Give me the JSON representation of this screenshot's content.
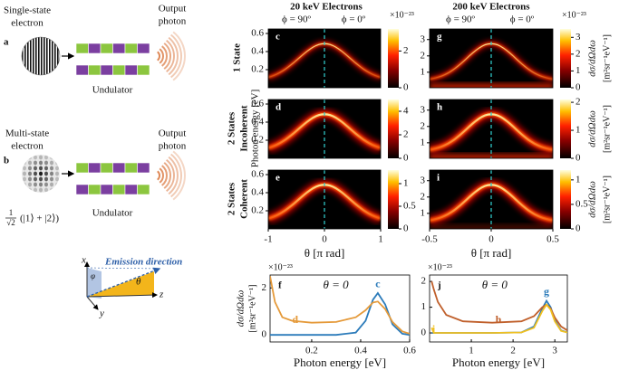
{
  "figure": {
    "panel_a": "a",
    "panel_b": "b",
    "single_electron": [
      "Single-state",
      "electron"
    ],
    "multi_electron": [
      "Multi-state",
      "electron"
    ],
    "output_photon_a": [
      "Output",
      "photon"
    ],
    "output_photon_b": [
      "Output",
      "photon"
    ],
    "undulator_a": "Undulator",
    "undulator_b": "Undulator",
    "superposition": {
      "num": "1",
      "den": "√2",
      "state": "(|1⟩ + |2⟩)"
    },
    "coordinates": {
      "x": "x",
      "y": "y",
      "z": "z",
      "phi": "φ",
      "theta": "θ",
      "emission": "Emission direction"
    },
    "columns": [
      {
        "title": "20 keV Electrons",
        "phi_left": "ϕ = 90º",
        "phi_right": "ϕ = 0º"
      },
      {
        "title": "200 keV Electrons",
        "phi_left": "ϕ = 90º",
        "phi_right": "ϕ = 0º"
      }
    ],
    "rows": [
      [
        "1 State"
      ],
      [
        "2 States",
        "Incoherent"
      ],
      [
        "2 States",
        "Coherent"
      ]
    ],
    "photon_energy_label": "Photon energy [eV]"
  },
  "chart_data": [
    {
      "type": "heatmap",
      "panel": "c",
      "ylim": [
        0,
        0.65
      ],
      "yticks": [
        0.2,
        0.4,
        0.6
      ],
      "zlim": [
        0,
        3.2
      ],
      "zticks": [
        0,
        2
      ],
      "zexponent": "×10⁻²³",
      "xlim": [
        -1,
        1
      ]
    },
    {
      "type": "heatmap",
      "panel": "d",
      "ylim": [
        0,
        0.65
      ],
      "yticks": [
        0.2,
        0.4,
        0.6
      ],
      "zlim": [
        0,
        5
      ],
      "zticks": [
        0,
        2,
        4
      ],
      "xlim": [
        -1,
        1
      ]
    },
    {
      "type": "heatmap",
      "panel": "e",
      "ylim": [
        0,
        0.65
      ],
      "yticks": [
        0.2,
        0.4,
        0.6
      ],
      "zlim": [
        0,
        1.3
      ],
      "zticks": [
        0,
        0.5,
        1
      ],
      "xlim": [
        -1,
        1
      ],
      "xticks": [
        -1,
        0,
        1
      ],
      "xlabel": "θ [π rad]"
    },
    {
      "type": "heatmap",
      "panel": "g",
      "ylim": [
        0.05,
        3.65
      ],
      "yticks": [
        1,
        2,
        3
      ],
      "zlim": [
        0,
        3.5
      ],
      "zticks": [
        0,
        1,
        2,
        3
      ],
      "zexponent": "×10⁻²³",
      "zlabel": "dσ/dΩdω",
      "zunit": "[m²sr⁻¹eV⁻¹]",
      "xlim": [
        -0.5,
        0.5
      ]
    },
    {
      "type": "heatmap",
      "panel": "h",
      "ylim": [
        0.05,
        3.65
      ],
      "yticks": [
        1,
        2,
        3
      ],
      "zlim": [
        0,
        2.1
      ],
      "zticks": [
        0,
        1,
        2
      ],
      "zlabel": "dσ/dΩdω",
      "zunit": "[m²sr⁻¹eV⁻¹]",
      "xlim": [
        -0.5,
        0.5
      ]
    },
    {
      "type": "heatmap",
      "panel": "i",
      "ylim": [
        0.05,
        3.65
      ],
      "yticks": [
        1,
        2,
        3
      ],
      "zlim": [
        0,
        1.2
      ],
      "zticks": [
        0,
        0.5,
        1
      ],
      "zlabel": "dσ/dΩdω",
      "zunit": "[m²sr⁻¹eV⁻¹]",
      "xlim": [
        -0.5,
        0.5
      ],
      "xticks": [
        -0.5,
        0,
        0.5
      ],
      "xlabel": "θ [π rad]"
    },
    {
      "type": "line",
      "panel": "f",
      "annotation": "θ = 0",
      "xlabel": "Photon energy [eV]",
      "ylabel": "dσ/dΩdω",
      "yunit": "[m²sr⁻¹eV⁻¹]",
      "yexponent": "×10⁻²³",
      "xlim": [
        0.03,
        0.6
      ],
      "xticks": [
        0.2,
        0.4,
        0.6
      ],
      "ylim": [
        -0.3,
        2.55
      ],
      "yticks": [
        0,
        2
      ],
      "x": [
        0.03,
        0.05,
        0.08,
        0.12,
        0.2,
        0.3,
        0.38,
        0.42,
        0.45,
        0.47,
        0.5,
        0.53,
        0.57,
        0.6
      ],
      "series": [
        {
          "name": "c",
          "color": "#2b7bba",
          "values": [
            0,
            0,
            0,
            0,
            0,
            0,
            0.1,
            0.6,
            1.5,
            1.78,
            1.3,
            0.45,
            0.05,
            0
          ]
        },
        {
          "name": "d",
          "color": "#e59a3a",
          "values": [
            2.5,
            1.4,
            0.75,
            0.6,
            0.52,
            0.55,
            0.75,
            1.05,
            1.38,
            1.42,
            1.1,
            0.55,
            0.15,
            0.05
          ]
        }
      ]
    },
    {
      "type": "line",
      "panel": "j",
      "annotation": "θ = 0",
      "xlabel": "Photon energy [eV]",
      "yexponent": "×10⁻²³",
      "xlim": [
        0,
        3.3
      ],
      "xticks": [
        1,
        2,
        3
      ],
      "ylim": [
        -0.35,
        2.25
      ],
      "yticks": [
        0,
        1,
        2
      ],
      "x": [
        0.05,
        0.1,
        0.2,
        0.4,
        0.8,
        1.5,
        2.2,
        2.5,
        2.7,
        2.8,
        2.9,
        3.0,
        3.15,
        3.3
      ],
      "series": [
        {
          "name": "g",
          "color": "#2b7bba",
          "values": [
            0,
            0,
            0,
            0,
            0,
            0,
            0.02,
            0.25,
            0.95,
            1.25,
            1.0,
            0.5,
            0.1,
            0.02
          ]
        },
        {
          "name": "h",
          "color": "#c0602c",
          "values": [
            2.0,
            1.7,
            1.2,
            0.7,
            0.45,
            0.4,
            0.45,
            0.65,
            1.0,
            1.1,
            0.95,
            0.6,
            0.25,
            0.1
          ]
        },
        {
          "name": "i",
          "color": "#f0c020",
          "values": [
            0.2,
            0,
            0,
            0,
            0,
            0,
            0.02,
            0.2,
            0.85,
            1.1,
            0.9,
            0.45,
            0.08,
            0.02
          ]
        }
      ]
    }
  ]
}
